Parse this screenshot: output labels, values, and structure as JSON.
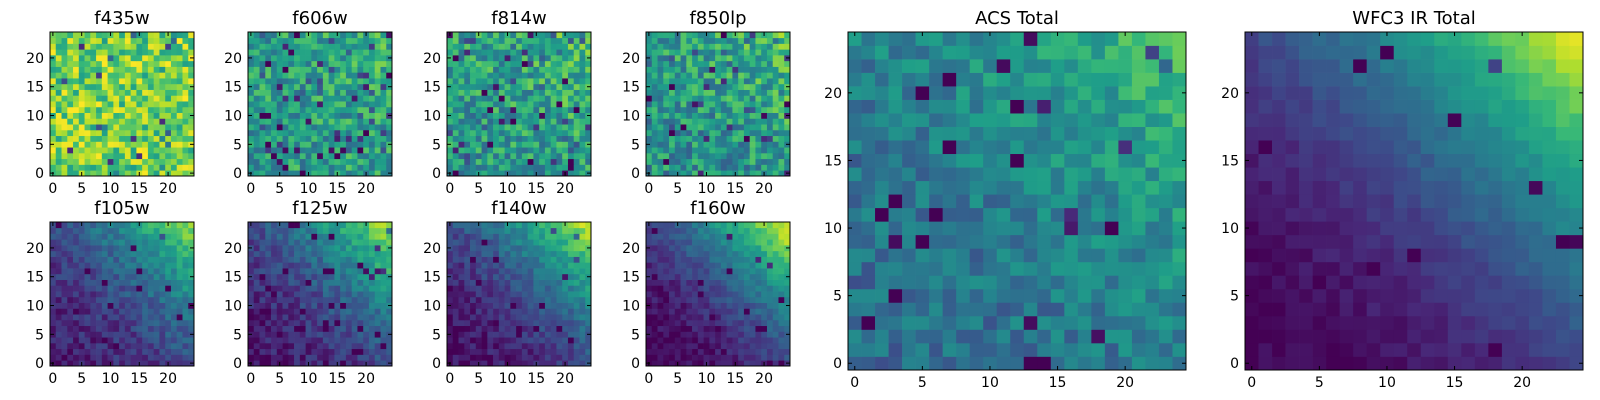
{
  "figure": {
    "type": "image-grid",
    "colormap": "viridis",
    "colormap_stops": [
      "#440154",
      "#482878",
      "#3e4989",
      "#31688e",
      "#26828e",
      "#1f9e89",
      "#35b779",
      "#6ece58",
      "#b5de2b",
      "#fde725"
    ]
  },
  "chart_data": [
    {
      "id": "f435w",
      "type": "heatmap",
      "title": "f435w",
      "size": 25,
      "xticks": [
        "0",
        "5",
        "10",
        "15",
        "20"
      ],
      "yticks": [
        "0",
        "5",
        "10",
        "15",
        "20"
      ],
      "seed": 11,
      "gradient": 0.0,
      "noise": 0.45,
      "base": 0.78,
      "dark_frac": 0.04
    },
    {
      "id": "f606w",
      "type": "heatmap",
      "title": "f606w",
      "size": 25,
      "xticks": [
        "0",
        "5",
        "10",
        "15",
        "20"
      ],
      "yticks": [
        "0",
        "5",
        "10",
        "15",
        "20"
      ],
      "seed": 23,
      "gradient": 0.1,
      "noise": 0.4,
      "base": 0.6,
      "dark_frac": 0.07
    },
    {
      "id": "f814w",
      "type": "heatmap",
      "title": "f814w",
      "size": 25,
      "xticks": [
        "0",
        "5",
        "10",
        "15",
        "20"
      ],
      "yticks": [
        "0",
        "5",
        "10",
        "15",
        "20"
      ],
      "seed": 37,
      "gradient": 0.15,
      "noise": 0.42,
      "base": 0.62,
      "dark_frac": 0.07
    },
    {
      "id": "f850lp",
      "type": "heatmap",
      "title": "f850lp",
      "size": 25,
      "xticks": [
        "0",
        "5",
        "10",
        "15",
        "20"
      ],
      "yticks": [
        "0",
        "5",
        "10",
        "15",
        "20"
      ],
      "seed": 41,
      "gradient": 0.2,
      "noise": 0.42,
      "base": 0.62,
      "dark_frac": 0.06
    },
    {
      "id": "f105w",
      "type": "heatmap",
      "title": "f105w",
      "size": 25,
      "xticks": [
        "0",
        "5",
        "10",
        "15",
        "20"
      ],
      "yticks": [
        "0",
        "5",
        "10",
        "15",
        "20"
      ],
      "seed": 53,
      "gradient": 0.75,
      "noise": 0.2,
      "base": 0.35,
      "dark_frac": 0.03
    },
    {
      "id": "f125w",
      "type": "heatmap",
      "title": "f125w",
      "size": 25,
      "xticks": [
        "0",
        "5",
        "10",
        "15",
        "20"
      ],
      "yticks": [
        "0",
        "5",
        "10",
        "15",
        "20"
      ],
      "seed": 67,
      "gradient": 0.8,
      "noise": 0.2,
      "base": 0.38,
      "dark_frac": 0.04
    },
    {
      "id": "f140w",
      "type": "heatmap",
      "title": "f140w",
      "size": 25,
      "xticks": [
        "0",
        "5",
        "10",
        "15",
        "20"
      ],
      "yticks": [
        "0",
        "5",
        "10",
        "15",
        "20"
      ],
      "seed": 79,
      "gradient": 0.85,
      "noise": 0.18,
      "base": 0.34,
      "dark_frac": 0.04
    },
    {
      "id": "f160w",
      "type": "heatmap",
      "title": "f160w",
      "size": 25,
      "xticks": [
        "0",
        "5",
        "10",
        "15",
        "20"
      ],
      "yticks": [
        "0",
        "5",
        "10",
        "15",
        "20"
      ],
      "seed": 83,
      "gradient": 0.95,
      "noise": 0.15,
      "base": 0.28,
      "dark_frac": 0.04
    },
    {
      "id": "acs_total",
      "type": "heatmap",
      "title": "ACS Total",
      "size": 25,
      "xticks": [
        "0",
        "5",
        "10",
        "15",
        "20"
      ],
      "yticks": [
        "0",
        "5",
        "10",
        "15",
        "20"
      ],
      "seed": 97,
      "gradient": 0.35,
      "noise": 0.25,
      "base": 0.55,
      "dark_frac": 0.04
    },
    {
      "id": "wfc3_ir_total",
      "type": "heatmap",
      "title": "WFC3 IR Total",
      "size": 25,
      "xticks": [
        "0",
        "5",
        "10",
        "15",
        "20"
      ],
      "yticks": [
        "0",
        "5",
        "10",
        "15",
        "20"
      ],
      "seed": 101,
      "gradient": 0.95,
      "noise": 0.08,
      "base": 0.28,
      "dark_frac": 0.02
    }
  ]
}
